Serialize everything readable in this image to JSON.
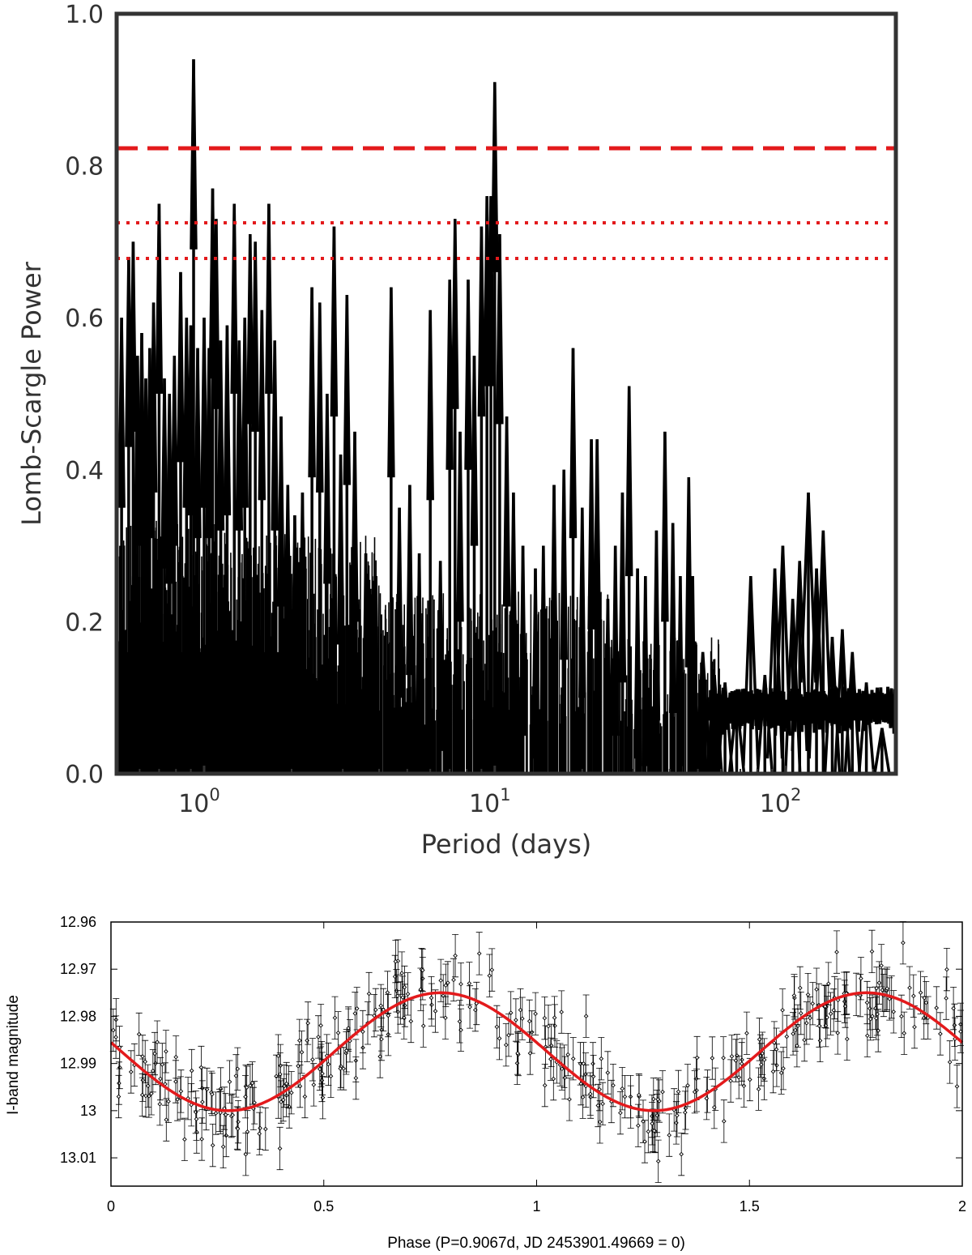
{
  "chart_data": [
    {
      "type": "line",
      "title": "",
      "xlabel": "Period (days)",
      "ylabel": "Lomb-Scargle Power",
      "x_scale": "log",
      "xlim": [
        0.5,
        240
      ],
      "ylim": [
        0.0,
        1.0
      ],
      "x_ticks": [
        {
          "value": 1,
          "base": "10",
          "exp": "0"
        },
        {
          "value": 10,
          "base": "10",
          "exp": "1"
        },
        {
          "value": 100,
          "base": "10",
          "exp": "2"
        }
      ],
      "y_ticks": [
        "0.0",
        "0.2",
        "0.4",
        "0.6",
        "0.8",
        "1.0"
      ],
      "grid": false,
      "series": [
        {
          "color": "#000000",
          "peaks": [
            [
              0.52,
              0.6
            ],
            [
              0.55,
              0.68
            ],
            [
              0.57,
              0.7
            ],
            [
              0.59,
              0.55
            ],
            [
              0.61,
              0.58
            ],
            [
              0.63,
              0.52
            ],
            [
              0.65,
              0.56
            ],
            [
              0.67,
              0.62
            ],
            [
              0.7,
              0.75
            ],
            [
              0.73,
              0.52
            ],
            [
              0.76,
              0.5
            ],
            [
              0.79,
              0.55
            ],
            [
              0.83,
              0.66
            ],
            [
              0.87,
              0.6
            ],
            [
              0.9,
              0.59
            ],
            [
              0.92,
              0.94
            ],
            [
              0.95,
              0.56
            ],
            [
              1.0,
              0.6
            ],
            [
              1.04,
              0.56
            ],
            [
              1.07,
              0.77
            ],
            [
              1.1,
              0.73
            ],
            [
              1.14,
              0.57
            ],
            [
              1.2,
              0.59
            ],
            [
              1.27,
              0.75
            ],
            [
              1.32,
              0.57
            ],
            [
              1.38,
              0.6
            ],
            [
              1.44,
              0.71
            ],
            [
              1.5,
              0.7
            ],
            [
              1.58,
              0.61
            ],
            [
              1.67,
              0.75
            ],
            [
              1.75,
              0.57
            ],
            [
              1.84,
              0.47
            ],
            [
              1.94,
              0.38
            ],
            [
              2.05,
              0.34
            ],
            [
              2.18,
              0.37
            ],
            [
              2.35,
              0.64
            ],
            [
              2.5,
              0.62
            ],
            [
              2.65,
              0.5
            ],
            [
              2.8,
              0.72
            ],
            [
              2.95,
              0.42
            ],
            [
              3.1,
              0.63
            ],
            [
              3.3,
              0.45
            ],
            [
              3.6,
              0.29
            ],
            [
              3.9,
              0.26
            ],
            [
              4.4,
              0.64
            ],
            [
              4.7,
              0.35
            ],
            [
              5.1,
              0.38
            ],
            [
              5.5,
              0.29
            ],
            [
              6.0,
              0.61
            ],
            [
              6.5,
              0.28
            ],
            [
              7.0,
              0.65
            ],
            [
              7.3,
              0.73
            ],
            [
              7.6,
              0.45
            ],
            [
              8.1,
              0.65
            ],
            [
              8.5,
              0.55
            ],
            [
              9.0,
              0.72
            ],
            [
              9.4,
              0.76
            ],
            [
              9.7,
              0.76
            ],
            [
              10.0,
              0.91
            ],
            [
              10.4,
              0.71
            ],
            [
              11.0,
              0.47
            ],
            [
              11.6,
              0.37
            ],
            [
              12.5,
              0.3
            ],
            [
              13.8,
              0.27
            ],
            [
              14.7,
              0.3
            ],
            [
              16.0,
              0.38
            ],
            [
              17.3,
              0.4
            ],
            [
              18.6,
              0.56
            ],
            [
              20.0,
              0.35
            ],
            [
              21.5,
              0.44
            ],
            [
              22.5,
              0.44
            ],
            [
              24.5,
              0.23
            ],
            [
              26.0,
              0.3
            ],
            [
              27.5,
              0.37
            ],
            [
              29.0,
              0.51
            ],
            [
              31.0,
              0.27
            ],
            [
              33.0,
              0.26
            ],
            [
              36.0,
              0.32
            ],
            [
              38.5,
              0.45
            ],
            [
              41.0,
              0.33
            ],
            [
              43.5,
              0.26
            ],
            [
              46.5,
              0.39
            ],
            [
              48.0,
              0.26
            ],
            [
              52.0,
              0.16
            ],
            [
              57.0,
              0.13
            ],
            [
              62.0,
              0.12
            ],
            [
              68.0,
              0.1
            ],
            [
              76.0,
              0.26
            ],
            [
              85.0,
              0.13
            ],
            [
              92.0,
              0.27
            ],
            [
              98.0,
              0.3
            ],
            [
              106.0,
              0.23
            ],
            [
              112.0,
              0.28
            ],
            [
              120.0,
              0.37
            ],
            [
              128.0,
              0.27
            ],
            [
              135.0,
              0.32
            ],
            [
              145.0,
              0.18
            ],
            [
              157.0,
              0.19
            ],
            [
              170.0,
              0.16
            ],
            [
              190.0,
              0.12
            ],
            [
              215.0,
              0.06
            ]
          ]
        },
        {
          "color": "#e31a1c",
          "style": "dashed",
          "values": [
            0.823
          ]
        },
        {
          "color": "#e31a1c",
          "style": "dotted",
          "values": [
            0.725
          ]
        },
        {
          "color": "#e31a1c",
          "style": "dotted",
          "values": [
            0.678
          ]
        }
      ]
    },
    {
      "type": "scatter",
      "title": "",
      "xlabel": "Phase (P=0.9067d, JD 2453901.49669 = 0)",
      "ylabel": "I-band magnitude",
      "xlim": [
        0,
        2
      ],
      "ylim": [
        12.96,
        13.016
      ],
      "y_inverted": true,
      "x_ticks": [
        "0",
        "0.5",
        "1",
        "1.5",
        "2"
      ],
      "y_ticks": [
        "12.96",
        "12.97",
        "12.98",
        "12.99",
        "13",
        "13.01"
      ],
      "grid": false,
      "fit": {
        "color": "#e31a1c",
        "mean": 12.9875,
        "amplitude": 0.0125,
        "max_brightness_phase": 0.775,
        "period_in_phase": 1.0
      },
      "points_color": "#000000",
      "n_points": 380,
      "error_bar": 0.0045
    }
  ]
}
